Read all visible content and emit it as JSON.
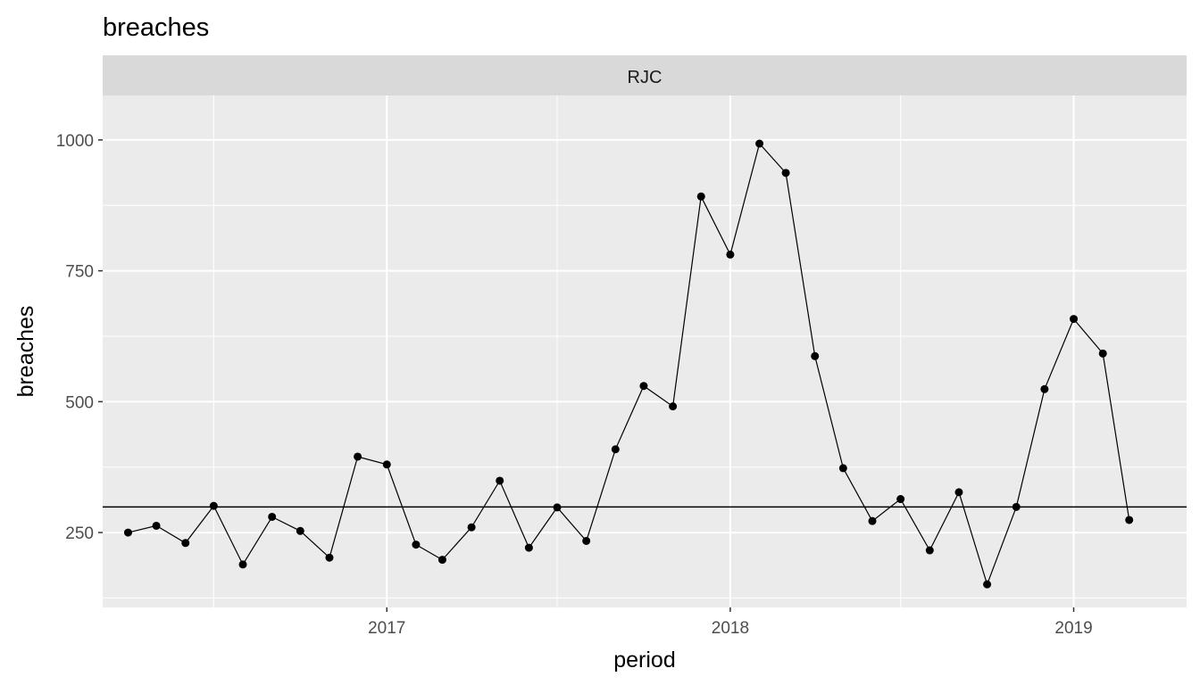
{
  "chart_data": {
    "type": "line",
    "title": "breaches",
    "facet": "RJC",
    "xlabel": "period",
    "ylabel": "breaches",
    "x_ticks": [
      "2017",
      "2018",
      "2019"
    ],
    "y_ticks": [
      250,
      500,
      750,
      1000
    ],
    "xlim": [
      "2016-03-05",
      "2019-05-01"
    ],
    "ylim": [
      107,
      1085
    ],
    "grid": true,
    "reference_line": 299,
    "colors": {
      "panel": "#ebebeb",
      "grid": "#ffffff",
      "strip": "#d9d9d9",
      "line": "#000000"
    },
    "series": [
      {
        "x": [
          "2016-04-01",
          "2016-05-01",
          "2016-06-01",
          "2016-07-01",
          "2016-08-01",
          "2016-09-01",
          "2016-10-01",
          "2016-11-01",
          "2016-12-01",
          "2017-01-01",
          "2017-02-01",
          "2017-03-01",
          "2017-04-01",
          "2017-05-01",
          "2017-06-01",
          "2017-07-01",
          "2017-08-01",
          "2017-09-01",
          "2017-10-01",
          "2017-11-01",
          "2017-12-01",
          "2018-01-01",
          "2018-02-01",
          "2018-03-01",
          "2018-04-01",
          "2018-05-01",
          "2018-06-01",
          "2018-07-01",
          "2018-08-01",
          "2018-09-01",
          "2018-10-01",
          "2018-11-01",
          "2018-12-01",
          "2019-01-01",
          "2019-02-01",
          "2019-03-01"
        ],
        "values": [
          250,
          263,
          230,
          301,
          189,
          280,
          253,
          202,
          395,
          380,
          227,
          198,
          260,
          349,
          221,
          298,
          234,
          409,
          530,
          491,
          892,
          781,
          993,
          937,
          587,
          373,
          272,
          314,
          216,
          327,
          151,
          299,
          524,
          658,
          592,
          274
        ]
      }
    ]
  }
}
